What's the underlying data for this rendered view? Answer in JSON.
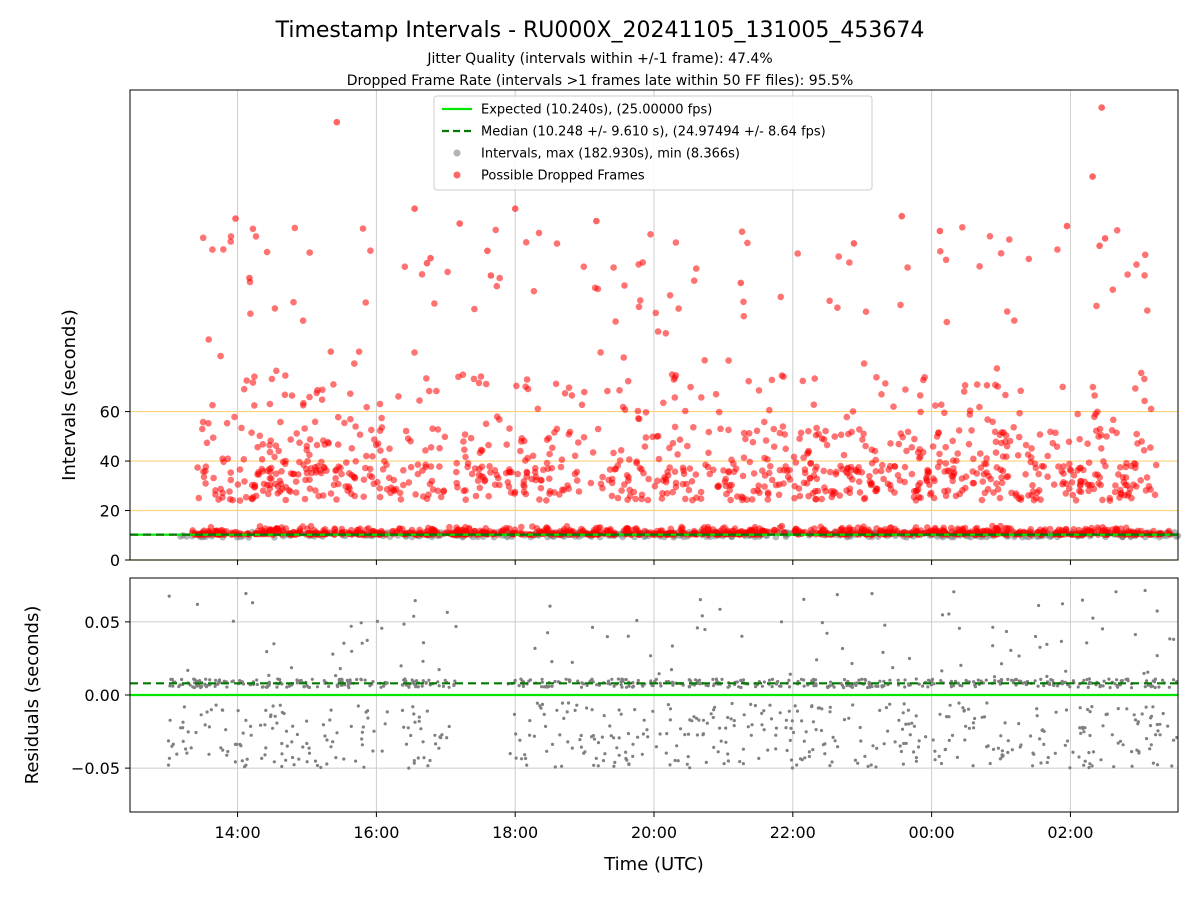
{
  "chart_data": [
    {
      "id": "intervals",
      "type": "scatter",
      "title": "Timestamp Intervals - RU000X_20241105_131005_453674",
      "subtitle_lines": [
        "Jitter Quality (intervals within +/-1 frame): 47.4%",
        "Dropped Frame Rate (intervals >1 frames late within 50 FF files): 95.5%"
      ],
      "ylabel": "Intervals (seconds)",
      "xlabel": "",
      "xlim_hours": [
        12.45,
        27.55
      ],
      "ylim": [
        0,
        190
      ],
      "yticks": [
        0,
        20,
        40,
        60
      ],
      "xtick_hours": [
        14,
        16,
        18,
        20,
        22,
        24,
        26
      ],
      "grid": true,
      "threshold_lines": [
        0,
        20,
        40,
        60
      ],
      "threshold_color": "#ffd37a",
      "expected_interval": 10.24,
      "median_interval": 10.248,
      "legend_position": "upper-center",
      "legend": [
        {
          "kind": "line",
          "label": "Expected (10.240s), (25.00000 fps)",
          "color": "#00e600",
          "style": "solid"
        },
        {
          "kind": "line",
          "label": "Median (10.248 +/- 9.610 s), (24.97494 +/- 8.64 fps)",
          "color": "#007a00",
          "style": "dashed"
        },
        {
          "kind": "dot",
          "label": "Intervals, max (182.930s), min (8.366s)",
          "color": "#808080"
        },
        {
          "kind": "dot",
          "label": "Possible Dropped Frames",
          "color": "#ff0000"
        }
      ],
      "series": [
        {
          "name": "Intervals, max (182.930s), min (8.366s)",
          "color": "#808080",
          "x_start_hour": 13.17,
          "x_end_hour": 27.55,
          "baseline": 10.24,
          "count": 420
        },
        {
          "name": "Possible Dropped Frames",
          "color": "#ff0000",
          "baseline_band": [
            10.2,
            14
          ],
          "highlight_points": [
            {
              "x": 15.43,
              "y": 177
            },
            {
              "x": 26.45,
              "y": 182.9
            },
            {
              "x": 26.32,
              "y": 155
            },
            {
              "x": 13.97,
              "y": 138
            },
            {
              "x": 16.55,
              "y": 142
            },
            {
              "x": 18.0,
              "y": 142
            },
            {
              "x": 19.17,
              "y": 137
            },
            {
              "x": 17.2,
              "y": 136
            },
            {
              "x": 24.12,
              "y": 133
            },
            {
              "x": 23.57,
              "y": 139
            },
            {
              "x": 25.95,
              "y": 135
            },
            {
              "x": 26.5,
              "y": 130
            },
            {
              "x": 26.42,
              "y": 127
            },
            {
              "x": 22.88,
              "y": 128
            },
            {
              "x": 17.6,
              "y": 125
            },
            {
              "x": 16.78,
              "y": 122
            },
            {
              "x": 16.73,
              "y": 120
            },
            {
              "x": 14.17,
              "y": 114
            },
            {
              "x": 21.25,
              "y": 112
            },
            {
              "x": 17.65,
              "y": 115
            }
          ]
        }
      ]
    },
    {
      "id": "residuals",
      "type": "scatter",
      "title": "",
      "xlabel": "Time (UTC)",
      "ylabel": "Residuals (seconds)",
      "xlim_hours": [
        12.45,
        27.55
      ],
      "ylim": [
        -0.08,
        0.08
      ],
      "yticks": [
        0.05,
        0.0,
        -0.05
      ],
      "ytick_labels": [
        "0.05",
        "0.00",
        "−0.05"
      ],
      "xtick_hours": [
        14,
        16,
        18,
        20,
        22,
        24,
        26
      ],
      "xtick_labels": [
        "14:00",
        "16:00",
        "18:00",
        "20:00",
        "22:00",
        "00:00",
        "02:00"
      ],
      "grid": true,
      "expected_residual": 0.0,
      "median_residual": 0.008,
      "series": [
        {
          "name": "",
          "color": "#808080",
          "count": 1100,
          "gaps_hours": [
            [
              17.15,
              17.9
            ],
            [
              16.2,
              16.35
            ]
          ]
        }
      ]
    }
  ]
}
